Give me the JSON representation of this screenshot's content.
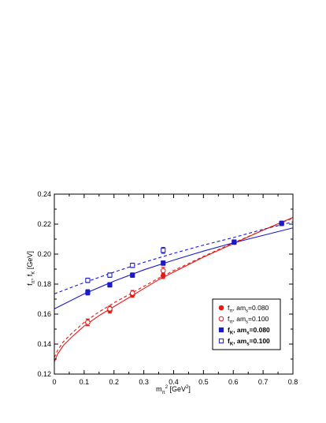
{
  "chart_data": {
    "type": "scatter",
    "title": "",
    "xlabel": {
      "main": "m",
      "sub": "π",
      "sup": "2",
      "rest": " [GeV",
      "sup2": "2",
      "end": "]"
    },
    "ylabel": {
      "a": "f",
      "a_sub": "π",
      "sep": ", f",
      "b_sub": "K",
      "rest": " [GeV]"
    },
    "xlim": [
      0,
      0.8
    ],
    "ylim": [
      0.12,
      0.24
    ],
    "xticks": [
      "0",
      "0.1",
      "0.2",
      "0.3",
      "0.4",
      "0.5",
      "0.6",
      "0.7",
      "0.8"
    ],
    "yticks": [
      "0.12",
      "0.14",
      "0.16",
      "0.18",
      "0.20",
      "0.22",
      "0.24"
    ],
    "xtick_values": [
      0,
      0.1,
      0.2,
      0.3,
      0.4,
      0.5,
      0.6,
      0.7,
      0.8
    ],
    "ytick_values": [
      0.12,
      0.14,
      0.16,
      0.18,
      0.2,
      0.22,
      0.24
    ],
    "legend_position": "lower-right",
    "series": [
      {
        "key": "fpi_080",
        "label": {
          "f": "f",
          "sub": "π",
          "mid": ", am",
          "sub2": "s",
          "val": "=0.080"
        },
        "bold": false,
        "color": "#e41b17",
        "marker": "circle-filled",
        "points": [
          {
            "x": 0.112,
            "y": 0.1545,
            "err": 0.0022
          },
          {
            "x": 0.186,
            "y": 0.1625,
            "err": 0.0018
          },
          {
            "x": 0.262,
            "y": 0.173,
            "err": 0.0018
          },
          {
            "x": 0.365,
            "y": 0.1855,
            "err": 0.0018
          },
          {
            "x": 0.603,
            "y": 0.208,
            "err": 0.0015
          },
          {
            "x": 0.762,
            "y": 0.2205,
            "err": 0.0015
          }
        ]
      },
      {
        "key": "fpi_100",
        "label": {
          "f": "f",
          "sub": "π",
          "mid": ", am",
          "sub2": "s",
          "val": "=0.100"
        },
        "bold": false,
        "color": "#e41b17",
        "marker": "circle-open",
        "points": [
          {
            "x": 0.112,
            "y": 0.1545,
            "err": 0.0022
          },
          {
            "x": 0.186,
            "y": 0.1635,
            "err": 0.0018
          },
          {
            "x": 0.262,
            "y": 0.174,
            "err": 0.0018
          },
          {
            "x": 0.365,
            "y": 0.189,
            "err": 0.0022
          }
        ]
      },
      {
        "key": "fk_080",
        "label": {
          "f": "f",
          "sub": "K",
          "mid": ", am",
          "sub2": "s",
          "val": "=0.080"
        },
        "bold": true,
        "color": "#1a1acc",
        "marker": "square-filled",
        "points": [
          {
            "x": 0.112,
            "y": 0.1745,
            "err": 0.0018
          },
          {
            "x": 0.186,
            "y": 0.1795,
            "err": 0.0015
          },
          {
            "x": 0.262,
            "y": 0.186,
            "err": 0.0015
          },
          {
            "x": 0.365,
            "y": 0.194,
            "err": 0.0015
          },
          {
            "x": 0.603,
            "y": 0.208,
            "err": 0.0015
          },
          {
            "x": 0.762,
            "y": 0.2205,
            "err": 0.0015
          }
        ]
      },
      {
        "key": "fk_100",
        "label": {
          "f": "f",
          "sub": "K",
          "mid": ", am",
          "sub2": "s",
          "val": "=0.100"
        },
        "bold": true,
        "color": "#1a1acc",
        "marker": "square-open",
        "points": [
          {
            "x": 0.112,
            "y": 0.1825,
            "err": 0.0015
          },
          {
            "x": 0.186,
            "y": 0.186,
            "err": 0.0015
          },
          {
            "x": 0.262,
            "y": 0.1925,
            "err": 0.0015
          },
          {
            "x": 0.365,
            "y": 0.2025,
            "err": 0.002
          }
        ]
      }
    ],
    "fit_curves": [
      {
        "key": "fit_fpi_080",
        "color": "#e41b17",
        "dash": false,
        "points": [
          [
            0,
            0.128
          ],
          [
            0.01,
            0.133
          ],
          [
            0.03,
            0.139
          ],
          [
            0.06,
            0.145
          ],
          [
            0.1,
            0.152
          ],
          [
            0.15,
            0.159
          ],
          [
            0.2,
            0.165
          ],
          [
            0.25,
            0.171
          ],
          [
            0.3,
            0.177
          ],
          [
            0.35,
            0.183
          ],
          [
            0.4,
            0.188
          ],
          [
            0.5,
            0.198
          ],
          [
            0.6,
            0.207
          ],
          [
            0.7,
            0.216
          ],
          [
            0.8,
            0.2245
          ]
        ]
      },
      {
        "key": "fit_fpi_100",
        "color": "#e41b17",
        "dash": true,
        "points": [
          [
            0,
            0.131
          ],
          [
            0.01,
            0.1355
          ],
          [
            0.03,
            0.1415
          ],
          [
            0.06,
            0.1475
          ],
          [
            0.1,
            0.1545
          ],
          [
            0.15,
            0.1615
          ],
          [
            0.2,
            0.1675
          ],
          [
            0.25,
            0.173
          ],
          [
            0.3,
            0.1785
          ],
          [
            0.35,
            0.184
          ],
          [
            0.4,
            0.189
          ],
          [
            0.5,
            0.1985
          ],
          [
            0.6,
            0.2075
          ],
          [
            0.7,
            0.216
          ],
          [
            0.8,
            0.224
          ]
        ]
      },
      {
        "key": "fit_fk_080",
        "color": "#1a1acc",
        "dash": false,
        "points": [
          [
            0,
            0.1635
          ],
          [
            0.1,
            0.1735
          ],
          [
            0.2,
            0.182
          ],
          [
            0.3,
            0.1895
          ],
          [
            0.4,
            0.196
          ],
          [
            0.5,
            0.202
          ],
          [
            0.6,
            0.2075
          ],
          [
            0.7,
            0.2125
          ],
          [
            0.8,
            0.2175
          ]
        ]
      },
      {
        "key": "fit_fk_100",
        "color": "#1a1acc",
        "dash": true,
        "points": [
          [
            0,
            0.1735
          ],
          [
            0.1,
            0.181
          ],
          [
            0.2,
            0.188
          ],
          [
            0.3,
            0.1945
          ],
          [
            0.4,
            0.2005
          ],
          [
            0.5,
            0.206
          ],
          [
            0.6,
            0.211
          ],
          [
            0.7,
            0.2165
          ],
          [
            0.8,
            0.2215
          ]
        ]
      }
    ]
  }
}
